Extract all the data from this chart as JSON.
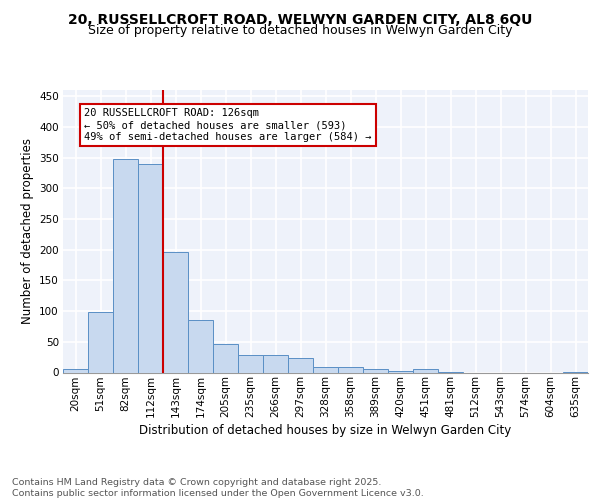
{
  "title1": "20, RUSSELLCROFT ROAD, WELWYN GARDEN CITY, AL8 6QU",
  "title2": "Size of property relative to detached houses in Welwyn Garden City",
  "xlabel": "Distribution of detached houses by size in Welwyn Garden City",
  "ylabel": "Number of detached properties",
  "footnote": "Contains HM Land Registry data © Crown copyright and database right 2025.\nContains public sector information licensed under the Open Government Licence v3.0.",
  "bar_labels": [
    "20sqm",
    "51sqm",
    "82sqm",
    "112sqm",
    "143sqm",
    "174sqm",
    "205sqm",
    "235sqm",
    "266sqm",
    "297sqm",
    "328sqm",
    "358sqm",
    "389sqm",
    "420sqm",
    "451sqm",
    "481sqm",
    "512sqm",
    "543sqm",
    "574sqm",
    "604sqm",
    "635sqm"
  ],
  "bar_values": [
    5,
    99,
    347,
    340,
    196,
    85,
    46,
    29,
    28,
    24,
    9,
    9,
    5,
    3,
    5,
    1,
    0,
    0,
    0,
    0,
    1
  ],
  "bar_color": "#c8d9ef",
  "bar_edge_color": "#5a8fc5",
  "vline_x": 3.5,
  "vline_color": "#cc0000",
  "annotation_text": "20 RUSSELLCROFT ROAD: 126sqm\n← 50% of detached houses are smaller (593)\n49% of semi-detached houses are larger (584) →",
  "annotation_box_color": "#cc0000",
  "ylim": [
    0,
    460
  ],
  "yticks": [
    0,
    50,
    100,
    150,
    200,
    250,
    300,
    350,
    400,
    450
  ],
  "bg_color": "#eef2fa",
  "grid_color": "#ffffff",
  "title_fontsize": 10,
  "subtitle_fontsize": 9,
  "axis_label_fontsize": 8.5,
  "tick_fontsize": 7.5,
  "footnote_fontsize": 6.8,
  "ann_fontsize": 7.5
}
